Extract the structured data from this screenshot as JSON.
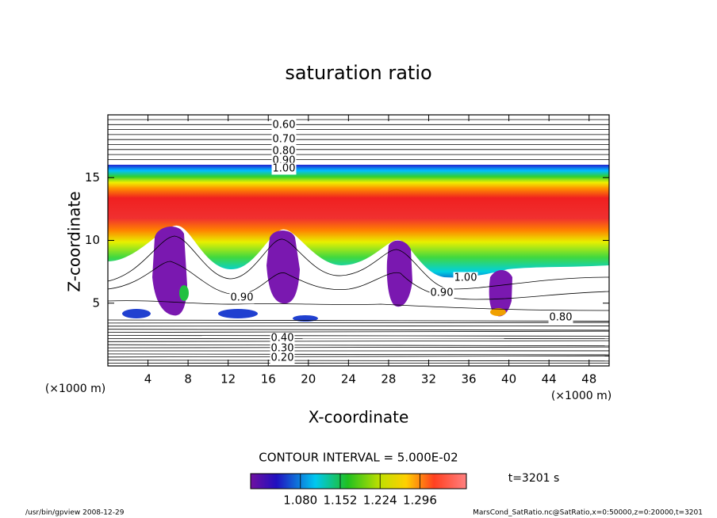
{
  "chart_data": {
    "type": "contour",
    "title": "saturation ratio",
    "x_label": "X-coordinate",
    "y_label": "Z-coordinate",
    "x_unit": "(×1000 m)",
    "y_unit": "(×1000 m)",
    "xlim": [
      0,
      50
    ],
    "xticks": [
      4,
      8,
      12,
      16,
      20,
      24,
      28,
      32,
      36,
      40,
      44,
      48
    ],
    "ylim": [
      0,
      20
    ],
    "yticks": [
      5,
      10,
      15
    ],
    "contour_labels": [
      {
        "value": 0.6,
        "label": "0.60"
      },
      {
        "value": 0.7,
        "label": "0.70"
      },
      {
        "value": 0.8,
        "label": "0.80"
      },
      {
        "value": 0.9,
        "label": "0.90"
      },
      {
        "value": 1.0,
        "label": "1.00"
      },
      {
        "value": 0.9,
        "label": "0.90"
      },
      {
        "value": 1.0,
        "label": "1.00"
      },
      {
        "value": 0.9,
        "label": "0.90"
      },
      {
        "value": 0.8,
        "label": "0.80"
      },
      {
        "value": 0.4,
        "label": "0.40"
      },
      {
        "value": 0.3,
        "label": "0.30"
      },
      {
        "value": 0.2,
        "label": "0.20"
      }
    ],
    "contour_interval": "CONTOUR INTERVAL = 5.000E-02",
    "time_label": "t=3201 s",
    "colorbar": {
      "clim": [
        0.99,
        1.38
      ],
      "ticks": [
        {
          "value": 1.08,
          "label": "1.080"
        },
        {
          "value": 1.152,
          "label": "1.152"
        },
        {
          "value": 1.224,
          "label": "1.224"
        },
        {
          "value": 1.296,
          "label": "1.296"
        }
      ]
    },
    "footer_left": "/usr/bin/gpview  2008-12-29",
    "footer_right": "MarsCond_SatRatio.nc@SatRatio,x=0:50000,z=0:20000,t=3201"
  }
}
